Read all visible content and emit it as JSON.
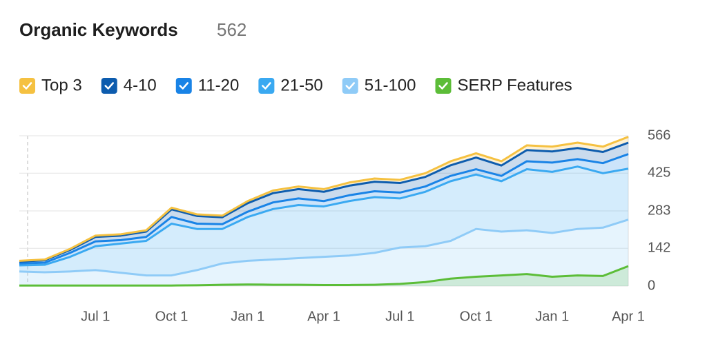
{
  "chart_data": {
    "type": "area",
    "title": "Organic Keywords",
    "headline_value": 562,
    "categories": [
      null,
      null,
      null,
      "Jul 1",
      null,
      null,
      "Oct 1",
      null,
      null,
      "Jan 1",
      null,
      null,
      "Apr 1",
      null,
      null,
      "Jul 1",
      null,
      null,
      "Oct 1",
      null,
      null,
      "Jan 1",
      null,
      null,
      "Apr 1"
    ],
    "series": [
      {
        "name": "Top 3",
        "color": "#f5c141",
        "stacked": true,
        "values": [
          3,
          3,
          4,
          5,
          5,
          5,
          6,
          6,
          6,
          8,
          10,
          10,
          10,
          12,
          12,
          12,
          14,
          15,
          16,
          16,
          18,
          18,
          20,
          20,
          22
        ]
      },
      {
        "name": "4-10",
        "color": "#0d5cae",
        "stacked": true,
        "values": [
          7,
          9,
          11,
          17,
          17,
          20,
          29,
          29,
          26,
          32,
          35,
          35,
          35,
          36,
          36,
          36,
          36,
          40,
          44,
          39,
          42,
          42,
          42,
          42,
          43
        ]
      },
      {
        "name": "11-20",
        "color": "#1983e6",
        "stacked": true,
        "values": [
          7,
          8,
          15,
          18,
          13,
          15,
          25,
          20,
          18,
          20,
          25,
          25,
          20,
          22,
          22,
          22,
          20,
          20,
          20,
          20,
          30,
          35,
          28,
          38,
          55
        ]
      },
      {
        "name": "21-50",
        "color": "#3aa9f1",
        "stacked": true,
        "values": [
          23,
          28,
          55,
          90,
          110,
          130,
          195,
          155,
          130,
          165,
          190,
          200,
          190,
          205,
          210,
          185,
          205,
          225,
          205,
          190,
          230,
          230,
          235,
          205,
          192
        ]
      },
      {
        "name": "51-100",
        "color": "#8fcbf7",
        "stacked": true,
        "values": [
          55,
          52,
          55,
          60,
          50,
          40,
          40,
          60,
          85,
          95,
          100,
          105,
          110,
          115,
          125,
          145,
          150,
          170,
          215,
          205,
          210,
          200,
          215,
          220,
          250
        ]
      },
      {
        "name": "SERP Features",
        "color": "#5cbd38",
        "stacked": false,
        "values": [
          2,
          2,
          2,
          2,
          2,
          2,
          2,
          3,
          5,
          6,
          5,
          5,
          4,
          4,
          5,
          8,
          15,
          28,
          35,
          40,
          45,
          35,
          40,
          38,
          75
        ]
      }
    ],
    "ylim": [
      0,
      566
    ],
    "yticks": [
      0,
      142,
      283,
      425,
      566
    ],
    "grid": true,
    "y_axis_side": "right"
  }
}
